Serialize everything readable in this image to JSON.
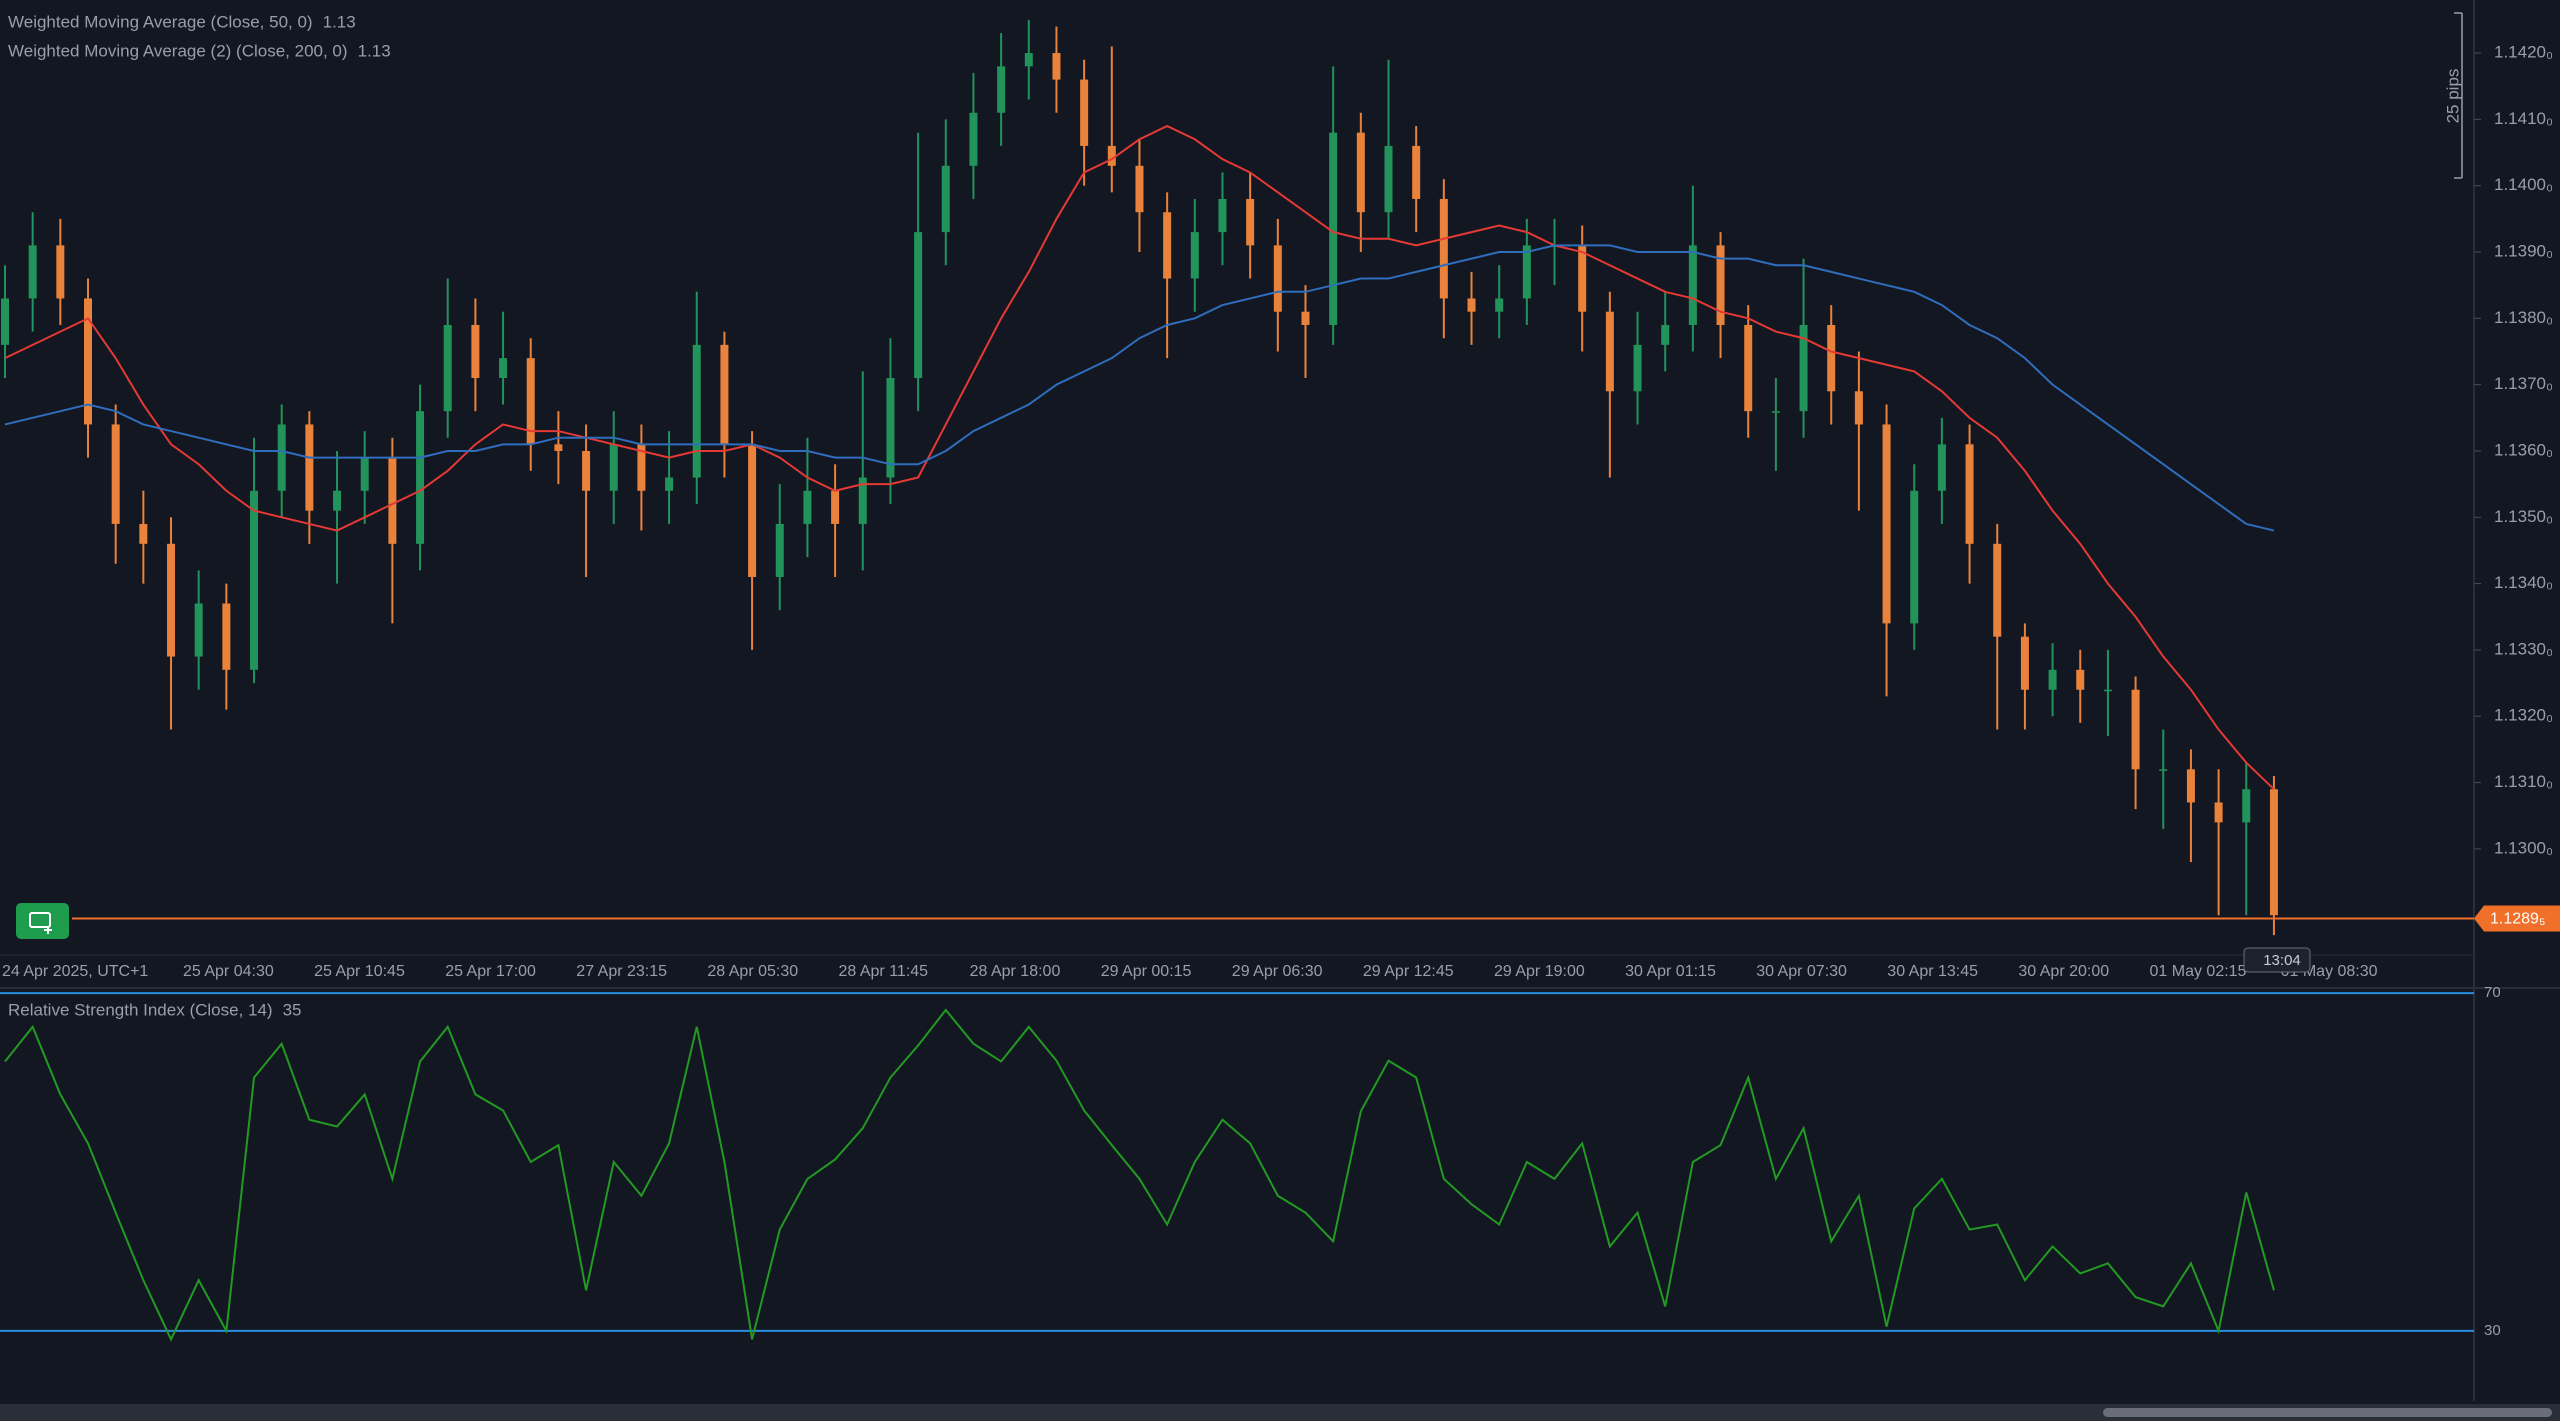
{
  "chart_data": [
    {
      "type": "candlestick",
      "up_color": "#22935a",
      "down_color": "#e9823a",
      "candles": [
        [
          1.1376,
          1.1388,
          1.1371,
          1.1383
        ],
        [
          1.1383,
          1.1396,
          1.1378,
          1.1391
        ],
        [
          1.1391,
          1.1395,
          1.1379,
          1.1383
        ],
        [
          1.1383,
          1.1386,
          1.1359,
          1.1364
        ],
        [
          1.1364,
          1.1367,
          1.1343,
          1.1349
        ],
        [
          1.1349,
          1.1354,
          1.134,
          1.1346
        ],
        [
          1.1346,
          1.135,
          1.1318,
          1.1329
        ],
        [
          1.1329,
          1.1342,
          1.1324,
          1.1337
        ],
        [
          1.1337,
          1.134,
          1.1321,
          1.1327
        ],
        [
          1.1327,
          1.1362,
          1.1325,
          1.1354
        ],
        [
          1.1354,
          1.1367,
          1.135,
          1.1364
        ],
        [
          1.1364,
          1.1366,
          1.1346,
          1.1351
        ],
        [
          1.1351,
          1.136,
          1.134,
          1.1354
        ],
        [
          1.1354,
          1.1363,
          1.1349,
          1.1359
        ],
        [
          1.1359,
          1.1362,
          1.1334,
          1.1346
        ],
        [
          1.1346,
          1.137,
          1.1342,
          1.1366
        ],
        [
          1.1366,
          1.1386,
          1.1362,
          1.1379
        ],
        [
          1.1379,
          1.1383,
          1.1366,
          1.1371
        ],
        [
          1.1371,
          1.1381,
          1.1367,
          1.1374
        ],
        [
          1.1374,
          1.1377,
          1.1357,
          1.1361
        ],
        [
          1.1361,
          1.1366,
          1.1355,
          1.136
        ],
        [
          1.136,
          1.1364,
          1.1341,
          1.1354
        ],
        [
          1.1354,
          1.1366,
          1.1349,
          1.1361
        ],
        [
          1.1361,
          1.1364,
          1.1348,
          1.1354
        ],
        [
          1.1354,
          1.1363,
          1.1349,
          1.1356
        ],
        [
          1.1356,
          1.1384,
          1.1352,
          1.1376
        ],
        [
          1.1376,
          1.1378,
          1.1356,
          1.1361
        ],
        [
          1.1361,
          1.1363,
          1.133,
          1.1341
        ],
        [
          1.1341,
          1.1355,
          1.1336,
          1.1349
        ],
        [
          1.1349,
          1.1362,
          1.1344,
          1.1354
        ],
        [
          1.1354,
          1.1358,
          1.1341,
          1.1349
        ],
        [
          1.1349,
          1.1372,
          1.1342,
          1.1356
        ],
        [
          1.1356,
          1.1377,
          1.1352,
          1.1371
        ],
        [
          1.1371,
          1.1408,
          1.1366,
          1.1393
        ],
        [
          1.1393,
          1.141,
          1.1388,
          1.1403
        ],
        [
          1.1403,
          1.1417,
          1.1398,
          1.1411
        ],
        [
          1.1411,
          1.1423,
          1.1406,
          1.1418
        ],
        [
          1.1418,
          1.1425,
          1.1413,
          1.142
        ],
        [
          1.142,
          1.1424,
          1.1411,
          1.1416
        ],
        [
          1.1416,
          1.1419,
          1.14,
          1.1406
        ],
        [
          1.1406,
          1.1421,
          1.1399,
          1.1403
        ],
        [
          1.1403,
          1.1407,
          1.139,
          1.1396
        ],
        [
          1.1396,
          1.1399,
          1.1374,
          1.1386
        ],
        [
          1.1386,
          1.1398,
          1.1381,
          1.1393
        ],
        [
          1.1393,
          1.1402,
          1.1388,
          1.1398
        ],
        [
          1.1398,
          1.1402,
          1.1386,
          1.1391
        ],
        [
          1.1391,
          1.1395,
          1.1375,
          1.1381
        ],
        [
          1.1381,
          1.1385,
          1.1371,
          1.1379
        ],
        [
          1.1379,
          1.1418,
          1.1376,
          1.1408
        ],
        [
          1.1408,
          1.1411,
          1.139,
          1.1396
        ],
        [
          1.1396,
          1.1419,
          1.1392,
          1.1406
        ],
        [
          1.1406,
          1.1409,
          1.1393,
          1.1398
        ],
        [
          1.1398,
          1.1401,
          1.1377,
          1.1383
        ],
        [
          1.1383,
          1.1387,
          1.1376,
          1.1381
        ],
        [
          1.1381,
          1.1388,
          1.1377,
          1.1383
        ],
        [
          1.1383,
          1.1395,
          1.1379,
          1.1391
        ],
        [
          1.1391,
          1.1395,
          1.1385,
          1.1391
        ],
        [
          1.1391,
          1.1394,
          1.1375,
          1.1381
        ],
        [
          1.1381,
          1.1384,
          1.1356,
          1.1369
        ],
        [
          1.1369,
          1.1381,
          1.1364,
          1.1376
        ],
        [
          1.1376,
          1.1384,
          1.1372,
          1.1379
        ],
        [
          1.1379,
          1.14,
          1.1375,
          1.1391
        ],
        [
          1.1391,
          1.1393,
          1.1374,
          1.1379
        ],
        [
          1.1379,
          1.1382,
          1.1362,
          1.1366
        ],
        [
          1.1366,
          1.1371,
          1.1357,
          1.1366
        ],
        [
          1.1366,
          1.1389,
          1.1362,
          1.1379
        ],
        [
          1.1379,
          1.1382,
          1.1364,
          1.1369
        ],
        [
          1.1369,
          1.1375,
          1.1351,
          1.1364
        ],
        [
          1.1364,
          1.1367,
          1.1323,
          1.1334
        ],
        [
          1.1334,
          1.1358,
          1.133,
          1.1354
        ],
        [
          1.1354,
          1.1365,
          1.1349,
          1.1361
        ],
        [
          1.1361,
          1.1364,
          1.134,
          1.1346
        ],
        [
          1.1346,
          1.1349,
          1.1318,
          1.1332
        ],
        [
          1.1332,
          1.1334,
          1.1318,
          1.1324
        ],
        [
          1.1324,
          1.1331,
          1.132,
          1.1327
        ],
        [
          1.1327,
          1.133,
          1.1319,
          1.1324
        ],
        [
          1.1324,
          1.133,
          1.1317,
          1.1324
        ],
        [
          1.1324,
          1.1326,
          1.1306,
          1.1312
        ],
        [
          1.1312,
          1.1318,
          1.1303,
          1.1312
        ],
        [
          1.1312,
          1.1315,
          1.1298,
          1.1307
        ],
        [
          1.1307,
          1.1312,
          1.129,
          1.1304
        ],
        [
          1.1304,
          1.1313,
          1.129,
          1.1309
        ],
        [
          1.1309,
          1.1311,
          1.1287,
          1.129
        ]
      ],
      "series": [
        {
          "name": "Weighted Moving Average (Close, 50, 0)",
          "color": "#e53935",
          "last_value": 1.13,
          "values": [
            1.1374,
            1.1376,
            1.1378,
            1.138,
            1.1374,
            1.1367,
            1.1361,
            1.1358,
            1.1354,
            1.1351,
            1.135,
            1.1349,
            1.1348,
            1.135,
            1.1352,
            1.1354,
            1.1357,
            1.1361,
            1.1364,
            1.1363,
            1.1363,
            1.1362,
            1.1361,
            1.136,
            1.1359,
            1.136,
            1.136,
            1.1361,
            1.1359,
            1.1356,
            1.1354,
            1.1355,
            1.1355,
            1.1356,
            1.1364,
            1.1372,
            1.138,
            1.1387,
            1.1395,
            1.1402,
            1.1404,
            1.1407,
            1.1409,
            1.1407,
            1.1404,
            1.1402,
            1.1399,
            1.1396,
            1.1393,
            1.1392,
            1.1392,
            1.1391,
            1.1392,
            1.1393,
            1.1394,
            1.1393,
            1.1391,
            1.139,
            1.1388,
            1.1386,
            1.1384,
            1.1383,
            1.1381,
            1.138,
            1.1378,
            1.1377,
            1.1375,
            1.1374,
            1.1373,
            1.1372,
            1.1369,
            1.1365,
            1.1362,
            1.1357,
            1.1351,
            1.1346,
            1.134,
            1.1335,
            1.1329,
            1.1324,
            1.1318,
            1.1313,
            1.1309
          ]
        },
        {
          "name": "Weighted Moving Average (2) (Close, 200, 0)",
          "color": "#2f6dbd",
          "last_value": 1.13,
          "values": [
            1.1364,
            1.1365,
            1.1366,
            1.1367,
            1.1366,
            1.1364,
            1.1363,
            1.1362,
            1.1361,
            1.136,
            1.136,
            1.1359,
            1.1359,
            1.1359,
            1.1359,
            1.1359,
            1.136,
            1.136,
            1.1361,
            1.1361,
            1.1362,
            1.1362,
            1.1362,
            1.1361,
            1.1361,
            1.1361,
            1.1361,
            1.1361,
            1.136,
            1.136,
            1.1359,
            1.1359,
            1.1358,
            1.1358,
            1.136,
            1.1363,
            1.1365,
            1.1367,
            1.137,
            1.1372,
            1.1374,
            1.1377,
            1.1379,
            1.138,
            1.1382,
            1.1383,
            1.1384,
            1.1384,
            1.1385,
            1.1386,
            1.1386,
            1.1387,
            1.1388,
            1.1389,
            1.139,
            1.139,
            1.1391,
            1.1391,
            1.1391,
            1.139,
            1.139,
            1.139,
            1.1389,
            1.1389,
            1.1388,
            1.1388,
            1.1387,
            1.1386,
            1.1385,
            1.1384,
            1.1382,
            1.1379,
            1.1377,
            1.1374,
            1.137,
            1.1367,
            1.1364,
            1.1361,
            1.1358,
            1.1355,
            1.1352,
            1.1349,
            1.1348
          ]
        }
      ],
      "ylim": [
        1.1284,
        1.1428
      ],
      "yticks": [
        {
          "value": 1.13,
          "label": "1.1300₀"
        },
        {
          "value": 1.131,
          "label": "1.1310₀"
        },
        {
          "value": 1.132,
          "label": "1.1320₀"
        },
        {
          "value": 1.133,
          "label": "1.1330₀"
        },
        {
          "value": 1.134,
          "label": "1.1340₀"
        },
        {
          "value": 1.135,
          "label": "1.1350₀"
        },
        {
          "value": 1.136,
          "label": "1.1360₀"
        },
        {
          "value": 1.137,
          "label": "1.1370₀"
        },
        {
          "value": 1.138,
          "label": "1.1380₀"
        },
        {
          "value": 1.139,
          "label": "1.1390₀"
        },
        {
          "value": 1.14,
          "label": "1.1400₀"
        },
        {
          "value": 1.141,
          "label": "1.1410₀"
        },
        {
          "value": 1.142,
          "label": "1.1420₀"
        }
      ],
      "grid": false,
      "time_labels": [
        "24 Apr 2025, UTC+1",
        "25 Apr 04:30",
        "25 Apr 10:45",
        "25 Apr 17:00",
        "27 Apr 23:15",
        "28 Apr 05:30",
        "28 Apr 11:45",
        "28 Apr 18:00",
        "29 Apr 00:15",
        "29 Apr 06:30",
        "29 Apr 12:45",
        "29 Apr 19:00",
        "30 Apr 01:15",
        "30 Apr 07:30",
        "30 Apr 13:45",
        "30 Apr 20:00",
        "01 May 02:15",
        "01 May 08:30"
      ],
      "last_price": {
        "value": 1.12895,
        "label": "1.1289₅",
        "color": "#f0702a"
      },
      "cursor_time": "13:04",
      "ruler_label": "25 pips"
    },
    {
      "type": "line",
      "title": "Relative Strength Index (Close, 14)",
      "last_value": 35,
      "series": [
        {
          "color": "#229a22",
          "values": [
            61.9,
            66,
            58,
            52.2,
            44,
            36,
            29,
            36,
            30,
            60,
            64,
            55,
            54.2,
            58,
            48,
            61.9,
            66,
            58,
            56.1,
            50,
            52,
            34.8,
            50,
            46,
            52.2,
            66,
            50,
            29,
            42,
            48,
            50.3,
            54,
            60,
            63.8,
            68,
            64,
            61.9,
            66,
            62,
            56.1,
            52,
            48,
            42.6,
            50,
            55,
            52.2,
            46,
            44,
            40.6,
            56,
            62,
            60,
            48,
            45,
            42.6,
            50,
            48,
            52.2,
            40,
            44,
            32.9,
            50,
            52,
            60,
            48,
            54,
            40.6,
            46,
            30.5,
            44.5,
            48,
            42,
            42.6,
            36,
            40,
            36.8,
            38,
            34,
            32.9,
            38,
            30,
            46.4,
            34.8
          ]
        }
      ],
      "ylim": [
        21.7,
        70.6
      ],
      "yticks": [
        30,
        70
      ],
      "grid": true,
      "grid_color": "#2a8fe0"
    }
  ]
}
